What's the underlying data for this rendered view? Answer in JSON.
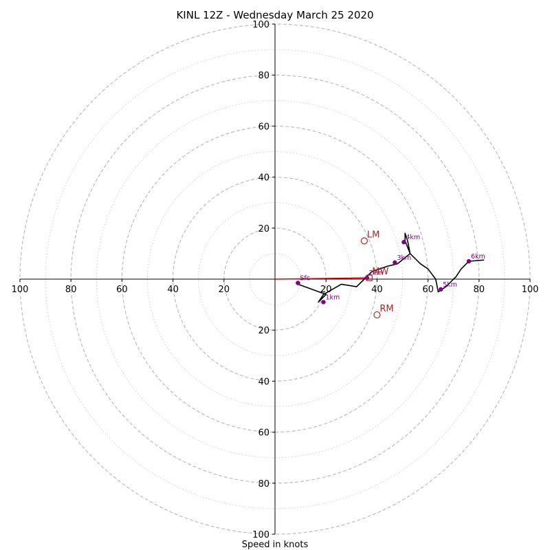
{
  "chart_data": {
    "type": "hodograph",
    "title": "KINL 12Z - Wednesday March 25 2020",
    "xlabel": "Speed in knots",
    "xlim": [
      -100,
      100
    ],
    "ylim": [
      -100,
      100
    ],
    "ring_major": [
      20,
      40,
      60,
      80,
      100
    ],
    "ring_minor": [
      10,
      30,
      50,
      70,
      90
    ],
    "tick_labels": {
      "x_left": [
        "100",
        "80",
        "60",
        "40",
        "20"
      ],
      "x_right": [
        "20",
        "40",
        "60",
        "80",
        "100"
      ],
      "y_top": [
        "100",
        "80",
        "60",
        "40",
        "20"
      ],
      "y_bottom": [
        "20",
        "40",
        "60",
        "80",
        "100"
      ]
    },
    "series": [
      {
        "values": [
          [
            9,
            -2
          ],
          [
            20,
            -6
          ],
          [
            17,
            -9
          ],
          [
            19,
            -6
          ],
          [
            26,
            -2
          ],
          [
            32,
            -3
          ],
          [
            35,
            0
          ],
          [
            38,
            3
          ],
          [
            44,
            5
          ],
          [
            48,
            6
          ],
          [
            53,
            10
          ],
          [
            51,
            15
          ],
          [
            51,
            18
          ],
          [
            52,
            15
          ],
          [
            53,
            10
          ],
          [
            57,
            6
          ],
          [
            60,
            4
          ],
          [
            63,
            0
          ],
          [
            64,
            -5
          ],
          [
            67,
            -3
          ],
          [
            71,
            1
          ],
          [
            73,
            4
          ],
          [
            76,
            7
          ],
          [
            82,
            7.5
          ]
        ]
      }
    ],
    "height_markers": [
      {
        "label": "Sfc",
        "u": 9,
        "v": -1.5
      },
      {
        "label": "1km",
        "u": 19,
        "v": -9
      },
      {
        "label": "2km",
        "u": 36,
        "v": 0.5
      },
      {
        "label": "3km",
        "u": 47,
        "v": 6.5
      },
      {
        "label": "4km",
        "u": 50.5,
        "v": 14.5
      },
      {
        "label": "5km",
        "u": 65,
        "v": -4
      },
      {
        "label": "6km",
        "u": 76,
        "v": 7
      }
    ],
    "storm_motion": [
      {
        "label": "LM",
        "u": 35,
        "v": 15,
        "shape": "circle"
      },
      {
        "label": "RM",
        "u": 40,
        "v": -14,
        "shape": "circle"
      },
      {
        "label": "MW",
        "u": 37,
        "v": 0.5,
        "shape": "square"
      }
    ],
    "shear_vector": {
      "from": [
        0,
        0
      ],
      "to": [
        37,
        0.5
      ]
    },
    "colors": {
      "trace": "#000000",
      "markers": "#800080",
      "storm_motion": "#b22222",
      "shear_vector": "#dd0000",
      "ring_major": "#bbbbbb",
      "ring_minor": "#cccccc"
    }
  }
}
